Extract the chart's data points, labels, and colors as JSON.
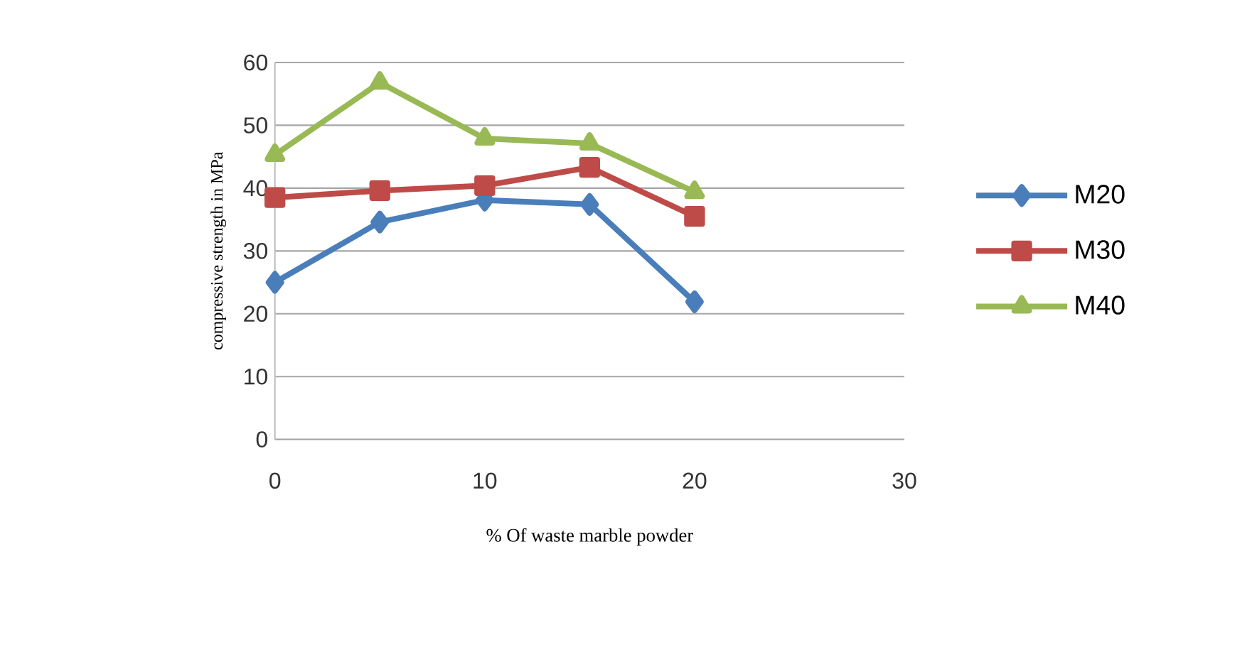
{
  "chart_data": {
    "type": "line",
    "xlabel": "% Of waste marble powder",
    "ylabel": "compressive strength in MPa",
    "x": [
      0,
      5,
      10,
      15,
      20
    ],
    "series": [
      {
        "name": "M20",
        "color": "#4a7ebb",
        "marker": "diamond",
        "values": [
          25.0,
          34.6,
          38.1,
          37.4,
          21.9
        ]
      },
      {
        "name": "M30",
        "color": "#be4b48",
        "marker": "square",
        "values": [
          38.5,
          39.6,
          40.4,
          43.3,
          35.5
        ]
      },
      {
        "name": "M40",
        "color": "#98b954",
        "marker": "triangle",
        "values": [
          45.3,
          56.8,
          47.9,
          47.1,
          39.4
        ]
      }
    ],
    "xlim": [
      0,
      30
    ],
    "xticks": [
      0,
      10,
      20,
      30
    ],
    "ylim": [
      0,
      60
    ],
    "yticks": [
      0,
      10,
      20,
      30,
      40,
      50,
      60
    ],
    "grid": "y",
    "legend": "right"
  }
}
